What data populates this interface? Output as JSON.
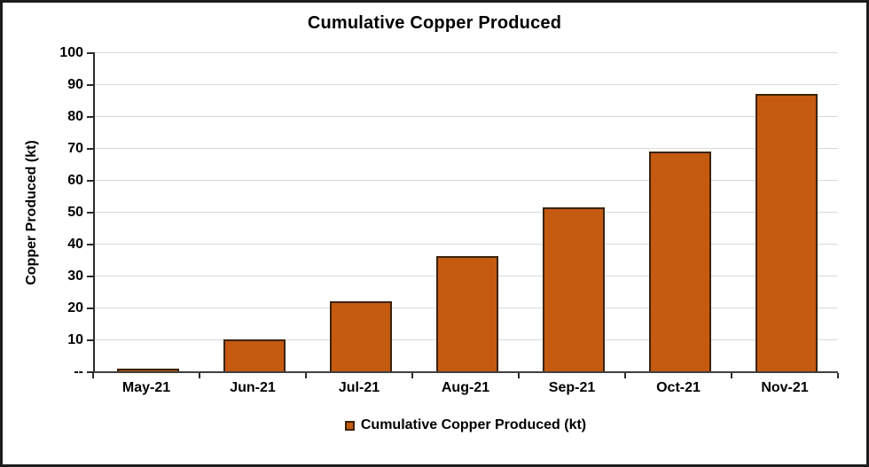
{
  "chart": {
    "title": "Cumulative Copper Produced",
    "y_axis_title": "Copper Produced (kt)",
    "legend_label": "Cumulative Copper Produced (kt)"
  },
  "chart_data": {
    "type": "bar",
    "title": "Cumulative Copper Produced",
    "xlabel": "",
    "ylabel": "Copper Produced (kt)",
    "categories": [
      "May-21",
      "Jun-21",
      "Jul-21",
      "Aug-21",
      "Sep-21",
      "Oct-21",
      "Nov-21"
    ],
    "values": [
      0.7,
      10,
      22,
      36,
      51.5,
      69,
      87
    ],
    "ylim": [
      0,
      100
    ],
    "ytick_step": 10,
    "ytick_labels": [
      "--",
      "10",
      "20",
      "30",
      "40",
      "50",
      "60",
      "70",
      "80",
      "90",
      "100"
    ],
    "grid": true,
    "legend": [
      "Cumulative Copper Produced (kt)"
    ],
    "legend_position": "bottom",
    "colors": {
      "bar_fill": "#C55A11",
      "bar_border": "#3B2308",
      "gridline": "#D9D9D9",
      "axis": "#2B2B2B",
      "text": "#000000",
      "background": "#FFFFFF",
      "frame_border": "#1D1D1D"
    }
  }
}
